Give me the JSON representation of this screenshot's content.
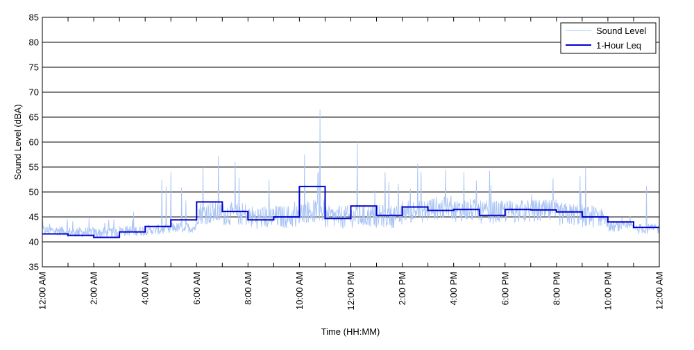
{
  "chart_data": {
    "type": "line",
    "title": "",
    "xlabel": "Time (HH:MM)",
    "ylabel": "Sound Level (dBA)",
    "ylim": [
      35,
      85
    ],
    "yticks": [
      35,
      40,
      45,
      50,
      55,
      60,
      65,
      70,
      75,
      80,
      85
    ],
    "xlim_hours": [
      0,
      24
    ],
    "xtick_labels": [
      "12:00 AM",
      "2:00 AM",
      "4:00 AM",
      "6:00 AM",
      "8:00 AM",
      "10:00 AM",
      "12:00 PM",
      "2:00 PM",
      "4:00 PM",
      "6:00 PM",
      "8:00 PM",
      "10:00 PM",
      "12:00 AM"
    ],
    "grid": "horizontal",
    "legend_position": "top-right",
    "colors": {
      "sound_level": "#a9c4f5",
      "leq": "#0000cc"
    },
    "series": [
      {
        "name": "Sound Level",
        "style": "thin",
        "approx_hourly_base": [
          41.2,
          40.9,
          40.8,
          41.2,
          41.4,
          41.8,
          43.5,
          43.2,
          42.6,
          42.7,
          43.8,
          42.6,
          42.8,
          42.8,
          43.8,
          44.4,
          44.0,
          43.6,
          43.8,
          43.8,
          43.2,
          42.8,
          42.0,
          41.6
        ],
        "notable_peaks": [
          {
            "x_hour": 10.8,
            "y": 66.5
          },
          {
            "x_hour": 10.2,
            "y": 57.5
          },
          {
            "x_hour": 12.25,
            "y": 60.0
          },
          {
            "x_hour": 6.25,
            "y": 55.0
          },
          {
            "x_hour": 6.85,
            "y": 57.2
          },
          {
            "x_hour": 7.5,
            "y": 56.0
          },
          {
            "x_hour": 4.65,
            "y": 52.5
          },
          {
            "x_hour": 5.0,
            "y": 54.0
          },
          {
            "x_hour": 14.6,
            "y": 55.7
          },
          {
            "x_hour": 16.4,
            "y": 54.0
          },
          {
            "x_hour": 23.5,
            "y": 51.2
          }
        ]
      },
      {
        "name": "1-Hour Leq",
        "style": "thick-step",
        "x_hour_start": [
          0,
          1,
          2,
          3,
          4,
          5,
          6,
          7,
          8,
          9,
          10,
          11,
          12,
          13,
          14,
          15,
          16,
          17,
          18,
          19,
          20,
          21,
          22,
          23
        ],
        "values": [
          41.6,
          41.3,
          40.9,
          42.0,
          43.1,
          44.4,
          48.0,
          46.1,
          44.4,
          45.0,
          51.1,
          44.7,
          47.2,
          45.3,
          47.0,
          46.3,
          46.5,
          45.3,
          46.5,
          46.4,
          46.0,
          45.0,
          44.0,
          42.9
        ]
      }
    ]
  }
}
